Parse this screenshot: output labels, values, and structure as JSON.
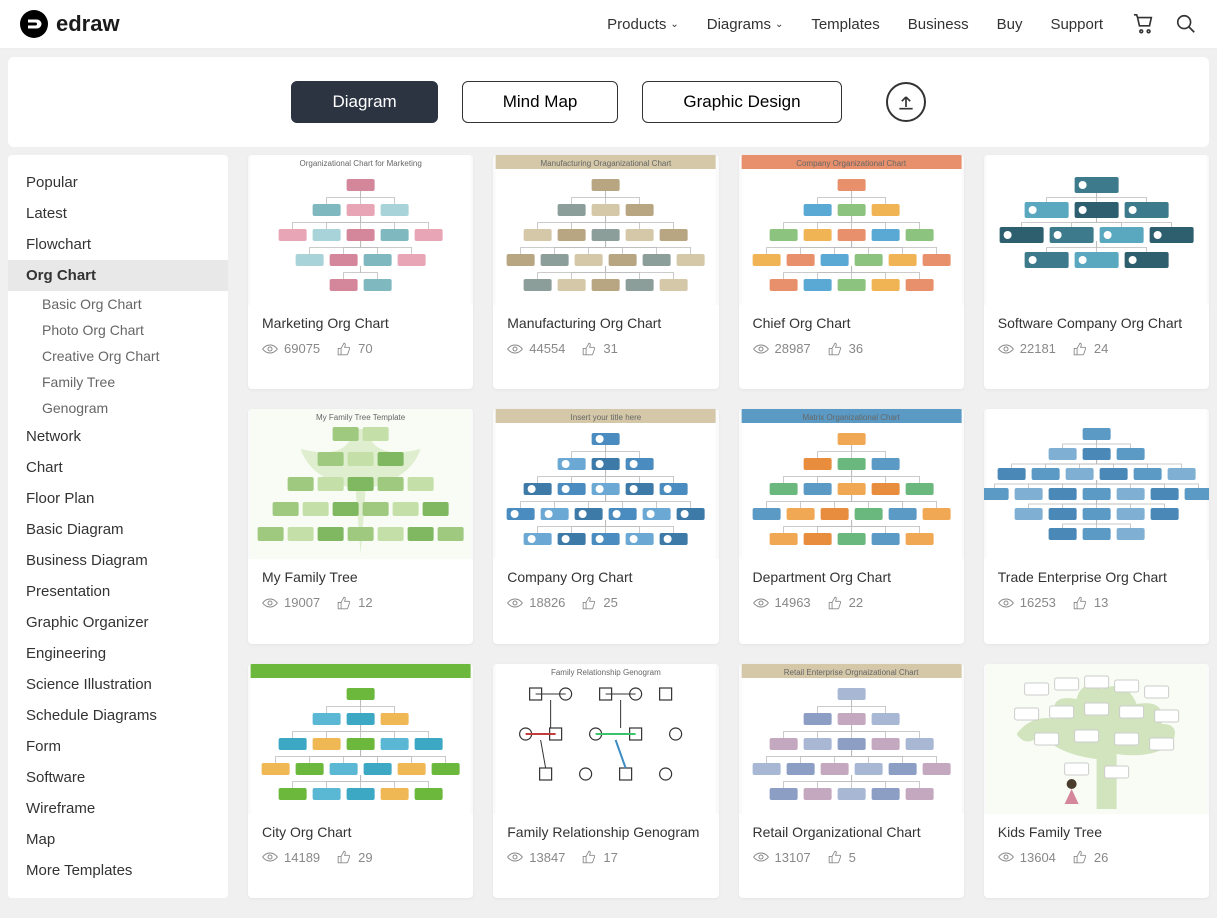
{
  "brand": "edraw",
  "nav": {
    "products": "Products",
    "diagrams": "Diagrams",
    "templates": "Templates",
    "business": "Business",
    "buy": "Buy",
    "support": "Support"
  },
  "tabs": {
    "diagram": "Diagram",
    "mindmap": "Mind Map",
    "graphic": "Graphic Design"
  },
  "sidebar": {
    "items": [
      "Popular",
      "Latest",
      "Flowchart",
      "Org Chart",
      "Network",
      "Chart",
      "Floor Plan",
      "Basic Diagram",
      "Business Diagram",
      "Presentation",
      "Graphic Organizer",
      "Engineering",
      "Science Illustration",
      "Schedule Diagrams",
      "Form",
      "Software",
      "Wireframe",
      "Map",
      "More Templates"
    ],
    "active_index": 3,
    "subs": [
      "Basic Org Chart",
      "Photo Org Chart",
      "Creative Org Chart",
      "Family Tree",
      "Genogram"
    ]
  },
  "templates": [
    {
      "title": "Marketing Org Chart",
      "views": "69075",
      "likes": "70",
      "thumb_title": "Organizational Chart for Marketing",
      "palette": [
        "#d4869a",
        "#7fb8bf",
        "#e8a5b5",
        "#a8d4d9"
      ]
    },
    {
      "title": "Manufacturing Org Chart",
      "views": "44554",
      "likes": "31",
      "thumb_title": "Manufacturing Oraganizational Chart",
      "palette": [
        "#b8a582",
        "#8c9e9a",
        "#d4c8a8"
      ]
    },
    {
      "title": "Chief Org Chart",
      "views": "28987",
      "likes": "36",
      "thumb_title": "Company Organizational Chart",
      "palette": [
        "#e8906c",
        "#5aa8d4",
        "#8cc47f",
        "#f0b454"
      ]
    },
    {
      "title": "Software Company Org Chart",
      "views": "22181",
      "likes": "24",
      "thumb_title": "",
      "palette": [
        "#3d7a8c",
        "#5aa8bf",
        "#2d5f6e"
      ]
    },
    {
      "title": "My Family Tree",
      "views": "19007",
      "likes": "12",
      "thumb_title": "My Family Tree Template",
      "palette": [
        "#9ec97f",
        "#c4e0a8",
        "#7fb860"
      ]
    },
    {
      "title": "Company Org Chart",
      "views": "18826",
      "likes": "25",
      "thumb_title": "Insert your title here",
      "palette": [
        "#4a8cbf",
        "#6ba8d4",
        "#3d7aa8"
      ]
    },
    {
      "title": "Department Org Chart",
      "views": "14963",
      "likes": "22",
      "thumb_title": "Matrix Organizational Chart",
      "palette": [
        "#f0a854",
        "#e88c3d",
        "#6bb87f",
        "#5a9ac4"
      ]
    },
    {
      "title": "Trade Enterprise Org Chart",
      "views": "16253",
      "likes": "13",
      "thumb_title": "",
      "palette": [
        "#5a9ac4",
        "#7fb0d4",
        "#4a88b8"
      ]
    },
    {
      "title": "City Org Chart",
      "views": "14189",
      "likes": "29",
      "thumb_title": "",
      "palette": [
        "#6bb83d",
        "#5ab8d4",
        "#3da8c4",
        "#f0b854"
      ]
    },
    {
      "title": "Family Relationship Genogram",
      "views": "13847",
      "likes": "17",
      "thumb_title": "Family Relationship Genogram",
      "palette": [
        "#333333",
        "#c43d3d",
        "#3d8cc4",
        "#3dc46b"
      ]
    },
    {
      "title": "Retail Organizational Chart",
      "views": "13107",
      "likes": "5",
      "thumb_title": "Retail Enterprise Orgnaizational Chart",
      "palette": [
        "#a8b8d4",
        "#8c9ec4",
        "#c4a8bf"
      ]
    },
    {
      "title": "Kids Family Tree",
      "views": "13604",
      "likes": "26",
      "thumb_title": "",
      "palette": [
        "#9ec97f",
        "#d4e0c4",
        "#7fb860"
      ]
    }
  ],
  "colors": {
    "bg": "#f0f0f0",
    "card_bg": "#ffffff",
    "tab_active_bg": "#2c3442",
    "text": "#333333",
    "text_muted": "#888888"
  }
}
